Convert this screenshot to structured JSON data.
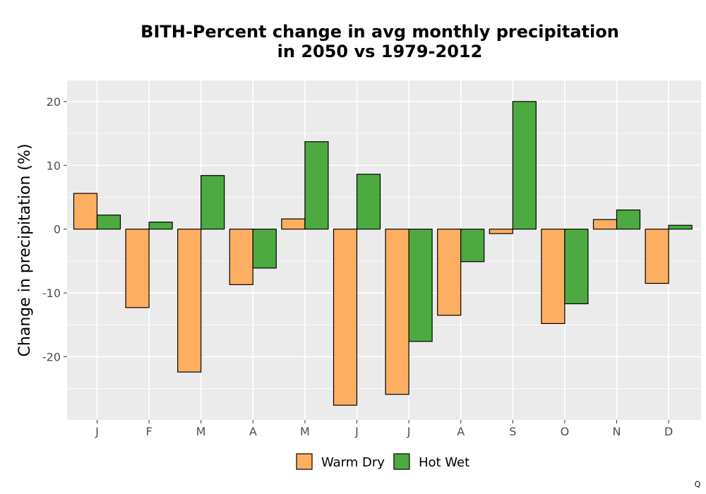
{
  "chart_data": {
    "type": "bar",
    "title": [
      "BITH-Percent change in avg monthly precipitation",
      "in 2050 vs 1979-2012"
    ],
    "xlabel": "",
    "ylabel": "Change in precipitation (%)",
    "categories": [
      "J",
      "F",
      "M",
      "A",
      "M",
      "J",
      "J",
      "A",
      "S",
      "O",
      "N",
      "D"
    ],
    "series": [
      {
        "name": "Warm Dry",
        "color": "#fdae61",
        "values": [
          5.6,
          -12.3,
          -22.4,
          -8.7,
          1.6,
          -27.6,
          -25.9,
          -13.5,
          -0.7,
          -14.8,
          1.5,
          -8.5
        ]
      },
      {
        "name": "Hot Wet",
        "color": "#4daa40",
        "values": [
          2.2,
          1.1,
          8.4,
          -6.1,
          13.7,
          8.6,
          -17.6,
          -5.1,
          20.0,
          -11.7,
          3.0,
          0.6
        ]
      }
    ],
    "ylim": [
      -29.9,
      23.3
    ],
    "yticks": [
      20,
      10,
      0,
      -10,
      -20
    ],
    "ytick_labels": [
      "20",
      "10",
      "0",
      "-10",
      "-20"
    ],
    "grid": true,
    "panel_color": "#ebebeb",
    "legend_position": "bottom"
  },
  "corner_mark": "Q"
}
